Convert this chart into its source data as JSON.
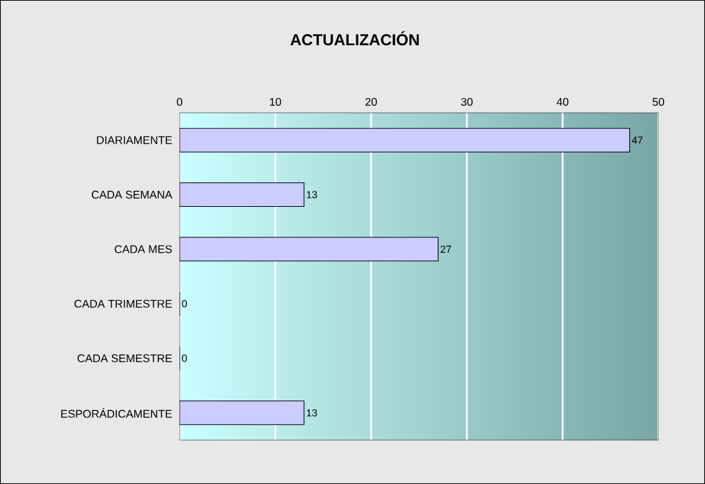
{
  "chart_data": {
    "type": "bar",
    "orientation": "horizontal",
    "title": "ACTUALIZACIÓN",
    "categories": [
      "DIARIAMENTE",
      "CADA SEMANA",
      "CADA MES",
      "CADA TRIMESTRE",
      "CADA SEMESTRE",
      "ESPORÁDICAMENTE"
    ],
    "values": [
      47,
      13,
      27,
      0,
      0,
      13
    ],
    "color": "#ccccff",
    "xlim": [
      0,
      50
    ],
    "xticks": [
      0,
      10,
      20,
      30,
      40,
      50
    ],
    "grid": "x",
    "data_labels": true
  }
}
